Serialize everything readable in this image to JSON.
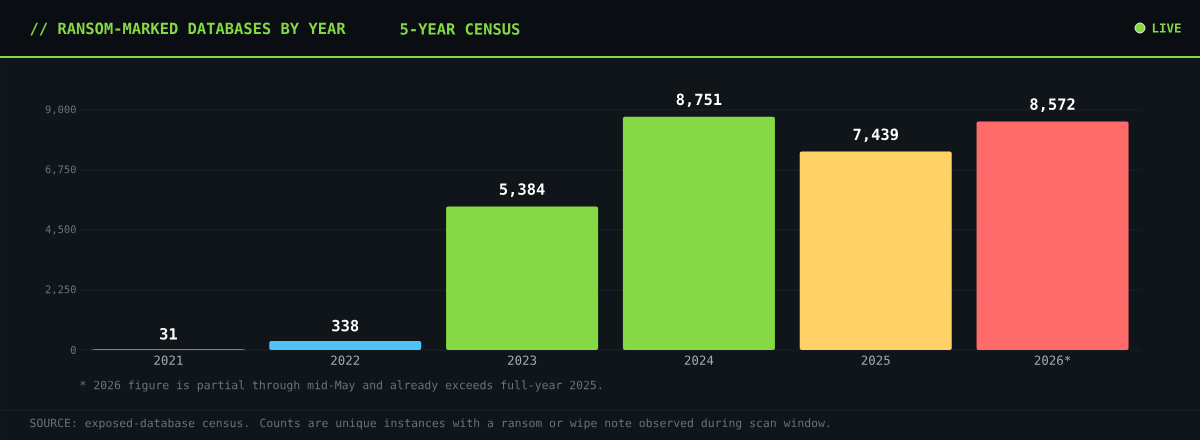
{
  "chart_data": {
    "type": "bar",
    "title": "// RANSOM-MARKED DATABASES BY YEAR",
    "subtitle": "5-YEAR CENSUS",
    "categories": [
      "2021",
      "2022",
      "2023",
      "2024",
      "2025",
      "2026*"
    ],
    "values": [
      31,
      338,
      5384,
      8751,
      7439,
      8572
    ],
    "value_labels": [
      "31",
      "338",
      "5,384",
      "8,751",
      "7,439",
      "8,572"
    ],
    "colors": [
      "#4fc3f7",
      "#4fc3f7",
      "#84d944",
      "#84d944",
      "#ffd166",
      "#ff6b6b"
    ],
    "ylim": [
      0,
      9000
    ],
    "yticks": [
      {
        "value": 0,
        "label": "0"
      },
      {
        "value": 2250,
        "label": "2,250"
      },
      {
        "value": 4500,
        "label": "4,500"
      },
      {
        "value": 6750,
        "label": "6,750"
      },
      {
        "value": 9000,
        "label": "9,000"
      }
    ],
    "grid": "y",
    "annotations": [
      "LIVE",
      "* 2026 figure is partial through mid-May and already exceeds full-year 2025.",
      "SOURCE: exposed-database census.  Counts are unique instances with a ransom or wipe note observed during scan window."
    ]
  }
}
